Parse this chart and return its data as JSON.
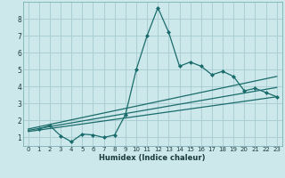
{
  "xlabel": "Humidex (Indice chaleur)",
  "bg_color": "#cce8ea",
  "grid_color": "#aacfd4",
  "line_color": "#1a6b6b",
  "xlim": [
    -0.5,
    23.5
  ],
  "ylim": [
    0.5,
    9.0
  ],
  "xticks": [
    0,
    1,
    2,
    3,
    4,
    5,
    6,
    7,
    8,
    9,
    10,
    11,
    12,
    13,
    14,
    15,
    16,
    17,
    18,
    19,
    20,
    21,
    22,
    23
  ],
  "yticks": [
    1,
    2,
    3,
    4,
    5,
    6,
    7,
    8
  ],
  "series1_x": [
    1,
    2,
    3,
    4,
    5,
    6,
    7,
    8,
    9,
    10,
    11,
    12,
    13,
    14,
    15,
    16,
    17,
    18,
    19,
    20,
    21,
    22,
    23
  ],
  "series1_y": [
    1.5,
    1.7,
    1.1,
    0.75,
    1.2,
    1.15,
    1.0,
    1.15,
    2.35,
    5.0,
    7.0,
    8.65,
    7.2,
    5.2,
    5.45,
    5.2,
    4.7,
    4.9,
    4.6,
    3.75,
    3.9,
    3.65,
    3.4
  ],
  "series2_x": [
    0,
    23
  ],
  "series2_y": [
    1.5,
    4.6
  ],
  "series3_x": [
    0,
    23
  ],
  "series3_y": [
    1.35,
    3.4
  ],
  "series4_x": [
    0,
    23
  ],
  "series4_y": [
    1.42,
    3.95
  ]
}
